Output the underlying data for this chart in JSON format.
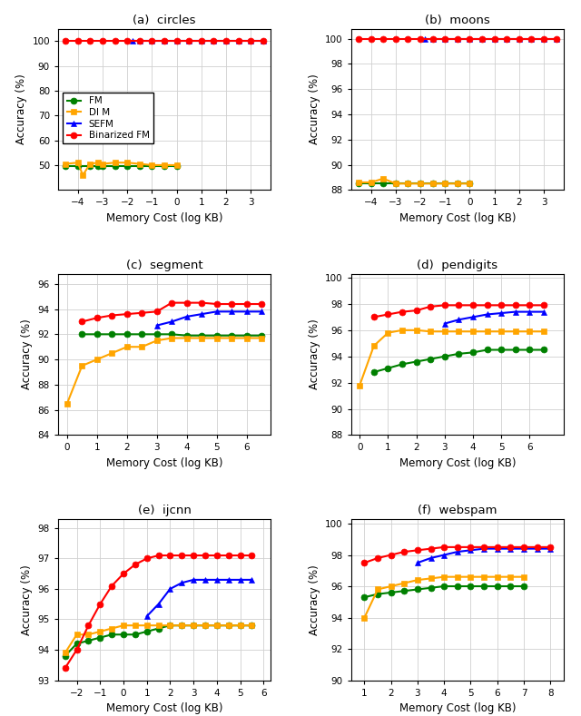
{
  "legend_labels": [
    "FM",
    "DI M",
    "SEFM",
    "Binarized FM"
  ],
  "colors": [
    "#008000",
    "#FFA500",
    "#0000FF",
    "#FF0000"
  ],
  "markers": [
    "o",
    "s",
    "^",
    "o"
  ],
  "circles": {
    "title": "(a)  circles",
    "xlabel": "Memory Cost (log KB)",
    "ylabel": "Accuracy (%)",
    "ylim": [
      40,
      105
    ],
    "yticks": [
      50,
      60,
      70,
      80,
      90,
      100
    ],
    "xlim": [
      -4.8,
      3.8
    ],
    "xticks": [
      -4,
      -3,
      -2,
      -1,
      0,
      1,
      2,
      3
    ],
    "FM": {
      "x": [
        -4.5,
        -4.0,
        -3.5,
        -3.2,
        -3.0,
        -2.5,
        -2.0,
        -1.5,
        -1.0,
        -0.5,
        0.0
      ],
      "y": [
        49.5,
        49.5,
        49.5,
        49.5,
        49.5,
        49.5,
        49.5,
        49.5,
        49.5,
        49.5,
        49.5
      ]
    },
    "DIM": {
      "x": [
        -4.5,
        -4.0,
        -3.8,
        -3.5,
        -3.2,
        -3.0,
        -2.5,
        -2.0,
        -1.5,
        -1.0,
        -0.5,
        0.0
      ],
      "y": [
        50.5,
        51.0,
        46.0,
        50.5,
        51.0,
        50.5,
        51.0,
        51.0,
        50.5,
        50.0,
        50.0,
        50.0
      ]
    },
    "SEFM": {
      "x": [
        -1.8,
        -1.5,
        -1.0,
        -0.5,
        0.0,
        0.5,
        1.0,
        1.5,
        2.0,
        2.5,
        3.0,
        3.5
      ],
      "y": [
        100.0,
        100.0,
        100.0,
        100.0,
        100.0,
        100.0,
        100.0,
        100.0,
        100.0,
        100.0,
        100.0,
        100.0
      ]
    },
    "BinarizedFM": {
      "x": [
        -4.5,
        -4.0,
        -3.5,
        -3.0,
        -2.5,
        -2.0,
        -1.5,
        -1.0,
        -0.5,
        0.0,
        0.5,
        1.0,
        1.5,
        2.0,
        2.5,
        3.0,
        3.5
      ],
      "y": [
        100.0,
        100.0,
        100.0,
        100.0,
        100.0,
        100.0,
        100.0,
        100.0,
        100.0,
        100.0,
        100.0,
        100.0,
        100.0,
        100.0,
        100.0,
        100.0,
        100.0
      ]
    }
  },
  "moons": {
    "title": "(b)  moons",
    "xlabel": "Memory Cost (log KB)",
    "ylabel": "Accuracy (%)",
    "ylim": [
      88.0,
      100.8
    ],
    "yticks": [
      88,
      90,
      92,
      94,
      96,
      98,
      100
    ],
    "xlim": [
      -4.8,
      3.8
    ],
    "xticks": [
      -4,
      -3,
      -2,
      -1,
      0,
      1,
      2,
      3
    ],
    "FM": {
      "x": [
        -4.5,
        -4.0,
        -3.5,
        -3.0,
        -2.5,
        -2.0,
        -1.5,
        -1.0,
        -0.5,
        0.0
      ],
      "y": [
        88.5,
        88.5,
        88.5,
        88.5,
        88.5,
        88.5,
        88.5,
        88.5,
        88.5,
        88.5
      ]
    },
    "DIM": {
      "x": [
        -4.5,
        -4.0,
        -3.5,
        -3.0,
        -2.5,
        -2.0,
        -1.5,
        -1.0,
        -0.5,
        0.0
      ],
      "y": [
        88.6,
        88.6,
        88.9,
        88.5,
        88.5,
        88.5,
        88.5,
        88.5,
        88.5,
        88.5
      ]
    },
    "SEFM": {
      "x": [
        -1.8,
        -1.5,
        -1.0,
        -0.5,
        0.0,
        0.5,
        1.0,
        1.5,
        2.0,
        2.5,
        3.0,
        3.5
      ],
      "y": [
        100.0,
        100.0,
        100.0,
        100.0,
        100.0,
        100.0,
        100.0,
        100.0,
        100.0,
        100.0,
        100.0,
        100.0
      ]
    },
    "BinarizedFM": {
      "x": [
        -4.5,
        -4.0,
        -3.5,
        -3.0,
        -2.5,
        -2.0,
        -1.5,
        -1.0,
        -0.5,
        0.0,
        0.5,
        1.0,
        1.5,
        2.0,
        2.5,
        3.0,
        3.5
      ],
      "y": [
        100.0,
        100.0,
        100.0,
        100.0,
        100.0,
        100.0,
        100.0,
        100.0,
        100.0,
        100.0,
        100.0,
        100.0,
        100.0,
        100.0,
        100.0,
        100.0,
        100.0
      ]
    }
  },
  "segment": {
    "title": "(c)  segment",
    "xlabel": "Memory Cost (log KB)",
    "ylabel": "Accuracy (%)",
    "ylim": [
      84,
      96.8
    ],
    "yticks": [
      84,
      86,
      88,
      90,
      92,
      94,
      96
    ],
    "xlim": [
      -0.3,
      6.8
    ],
    "xticks": [
      0,
      1,
      2,
      3,
      4,
      5,
      6
    ],
    "FM": {
      "x": [
        0.5,
        1.0,
        1.5,
        2.0,
        2.5,
        3.0,
        3.5,
        4.0,
        4.5,
        5.0,
        5.5,
        6.0,
        6.5
      ],
      "y": [
        92.0,
        92.0,
        92.0,
        92.0,
        92.0,
        92.0,
        92.0,
        91.9,
        91.9,
        91.9,
        91.9,
        91.9,
        91.9
      ]
    },
    "DIM": {
      "x": [
        0.0,
        0.5,
        1.0,
        1.5,
        2.0,
        2.5,
        3.0,
        3.5,
        4.0,
        4.5,
        5.0,
        5.5,
        6.0,
        6.5
      ],
      "y": [
        86.5,
        89.5,
        90.0,
        90.5,
        91.0,
        91.0,
        91.5,
        91.7,
        91.7,
        91.7,
        91.7,
        91.7,
        91.7,
        91.7
      ]
    },
    "SEFM": {
      "x": [
        3.0,
        3.5,
        4.0,
        4.5,
        5.0,
        5.5,
        6.0,
        6.5
      ],
      "y": [
        92.7,
        93.0,
        93.4,
        93.6,
        93.8,
        93.8,
        93.8,
        93.8
      ]
    },
    "BinarizedFM": {
      "x": [
        0.5,
        1.0,
        1.5,
        2.0,
        2.5,
        3.0,
        3.5,
        4.0,
        4.5,
        5.0,
        5.5,
        6.0,
        6.5
      ],
      "y": [
        93.0,
        93.3,
        93.5,
        93.6,
        93.7,
        93.8,
        94.5,
        94.5,
        94.5,
        94.4,
        94.4,
        94.4,
        94.4
      ]
    }
  },
  "pendigits": {
    "title": "(d)  pendigits",
    "xlabel": "Memory Cost (log KB)",
    "ylabel": "Accuracy (%)",
    "ylim": [
      88,
      100.3
    ],
    "yticks": [
      88,
      90,
      92,
      94,
      96,
      98,
      100
    ],
    "xlim": [
      -0.3,
      7.2
    ],
    "xticks": [
      0,
      1,
      2,
      3,
      4,
      5,
      6
    ],
    "FM": {
      "x": [
        0.5,
        1.0,
        1.5,
        2.0,
        2.5,
        3.0,
        3.5,
        4.0,
        4.5,
        5.0,
        5.5,
        6.0,
        6.5
      ],
      "y": [
        92.8,
        93.1,
        93.4,
        93.6,
        93.8,
        94.0,
        94.2,
        94.3,
        94.5,
        94.5,
        94.5,
        94.5,
        94.5
      ]
    },
    "DIM": {
      "x": [
        0.0,
        0.5,
        1.0,
        1.5,
        2.0,
        2.5,
        3.0,
        3.5,
        4.0,
        4.5,
        5.0,
        5.5,
        6.0,
        6.5
      ],
      "y": [
        91.8,
        94.8,
        95.8,
        96.0,
        96.0,
        95.9,
        95.9,
        95.9,
        95.9,
        95.9,
        95.9,
        95.9,
        95.9,
        95.9
      ]
    },
    "SEFM": {
      "x": [
        3.0,
        3.5,
        4.0,
        4.5,
        5.0,
        5.5,
        6.0,
        6.5
      ],
      "y": [
        96.5,
        96.8,
        97.0,
        97.2,
        97.3,
        97.4,
        97.4,
        97.4
      ]
    },
    "BinarizedFM": {
      "x": [
        0.5,
        1.0,
        1.5,
        2.0,
        2.5,
        3.0,
        3.5,
        4.0,
        4.5,
        5.0,
        5.5,
        6.0,
        6.5
      ],
      "y": [
        97.0,
        97.2,
        97.4,
        97.5,
        97.8,
        97.9,
        97.9,
        97.9,
        97.9,
        97.9,
        97.9,
        97.9,
        97.9
      ]
    }
  },
  "ijcnn": {
    "title": "(e)  ijcnn",
    "xlabel": "Memory Cost (log KB)",
    "ylabel": "Accuracy (%)",
    "ylim": [
      93.0,
      98.3
    ],
    "yticks": [
      93,
      94,
      95,
      96,
      97,
      98
    ],
    "xlim": [
      -2.8,
      6.3
    ],
    "xticks": [
      -2,
      -1,
      0,
      1,
      2,
      3,
      4,
      5,
      6
    ],
    "FM": {
      "x": [
        -2.5,
        -2.0,
        -1.5,
        -1.0,
        -0.5,
        0.0,
        0.5,
        1.0,
        1.5,
        2.0,
        2.5,
        3.0,
        3.5,
        4.0,
        4.5,
        5.0,
        5.5
      ],
      "y": [
        93.8,
        94.2,
        94.3,
        94.4,
        94.5,
        94.5,
        94.5,
        94.6,
        94.7,
        94.8,
        94.8,
        94.8,
        94.8,
        94.8,
        94.8,
        94.8,
        94.8
      ]
    },
    "DIM": {
      "x": [
        -2.5,
        -2.0,
        -1.5,
        -1.0,
        -0.5,
        0.0,
        0.5,
        1.0,
        1.5,
        2.0,
        2.5,
        3.0,
        3.5,
        4.0,
        4.5,
        5.0,
        5.5
      ],
      "y": [
        93.9,
        94.5,
        94.5,
        94.6,
        94.7,
        94.8,
        94.8,
        94.8,
        94.8,
        94.8,
        94.8,
        94.8,
        94.8,
        94.8,
        94.8,
        94.8,
        94.8
      ]
    },
    "SEFM": {
      "x": [
        1.0,
        1.5,
        2.0,
        2.5,
        3.0,
        3.5,
        4.0,
        4.5,
        5.0,
        5.5
      ],
      "y": [
        95.1,
        95.5,
        96.0,
        96.2,
        96.3,
        96.3,
        96.3,
        96.3,
        96.3,
        96.3
      ]
    },
    "BinarizedFM": {
      "x": [
        -2.5,
        -2.0,
        -1.5,
        -1.0,
        -0.5,
        0.0,
        0.5,
        1.0,
        1.5,
        2.0,
        2.5,
        3.0,
        3.5,
        4.0,
        4.5,
        5.0,
        5.5
      ],
      "y": [
        93.4,
        94.0,
        94.8,
        95.5,
        96.1,
        96.5,
        96.8,
        97.0,
        97.1,
        97.1,
        97.1,
        97.1,
        97.1,
        97.1,
        97.1,
        97.1,
        97.1
      ]
    }
  },
  "webspam": {
    "title": "(f)  webspam",
    "xlabel": "Memory Cost (log KB)",
    "ylabel": "Accuracy (%)",
    "ylim": [
      90,
      100.3
    ],
    "yticks": [
      90,
      92,
      94,
      96,
      98,
      100
    ],
    "xlim": [
      0.5,
      8.5
    ],
    "xticks": [
      1,
      2,
      3,
      4,
      5,
      6,
      7,
      8
    ],
    "FM": {
      "x": [
        1.0,
        1.5,
        2.0,
        2.5,
        3.0,
        3.5,
        4.0,
        4.5,
        5.0,
        5.5,
        6.0,
        6.5,
        7.0
      ],
      "y": [
        95.3,
        95.5,
        95.6,
        95.7,
        95.8,
        95.9,
        96.0,
        96.0,
        96.0,
        96.0,
        96.0,
        96.0,
        96.0
      ]
    },
    "DIM": {
      "x": [
        1.0,
        1.5,
        2.0,
        2.5,
        3.0,
        3.5,
        4.0,
        4.5,
        5.0,
        5.5,
        6.0,
        6.5,
        7.0
      ],
      "y": [
        94.0,
        95.8,
        96.0,
        96.2,
        96.4,
        96.5,
        96.6,
        96.6,
        96.6,
        96.6,
        96.6,
        96.6,
        96.6
      ]
    },
    "SEFM": {
      "x": [
        3.0,
        3.5,
        4.0,
        4.5,
        5.0,
        5.5,
        6.0,
        6.5,
        7.0,
        7.5,
        8.0
      ],
      "y": [
        97.5,
        97.8,
        98.0,
        98.2,
        98.3,
        98.4,
        98.4,
        98.4,
        98.4,
        98.4,
        98.4
      ]
    },
    "BinarizedFM": {
      "x": [
        1.0,
        1.5,
        2.0,
        2.5,
        3.0,
        3.5,
        4.0,
        4.5,
        5.0,
        5.5,
        6.0,
        6.5,
        7.0,
        7.5,
        8.0
      ],
      "y": [
        97.5,
        97.8,
        98.0,
        98.2,
        98.3,
        98.4,
        98.5,
        98.5,
        98.5,
        98.5,
        98.5,
        98.5,
        98.5,
        98.5,
        98.5
      ]
    }
  }
}
